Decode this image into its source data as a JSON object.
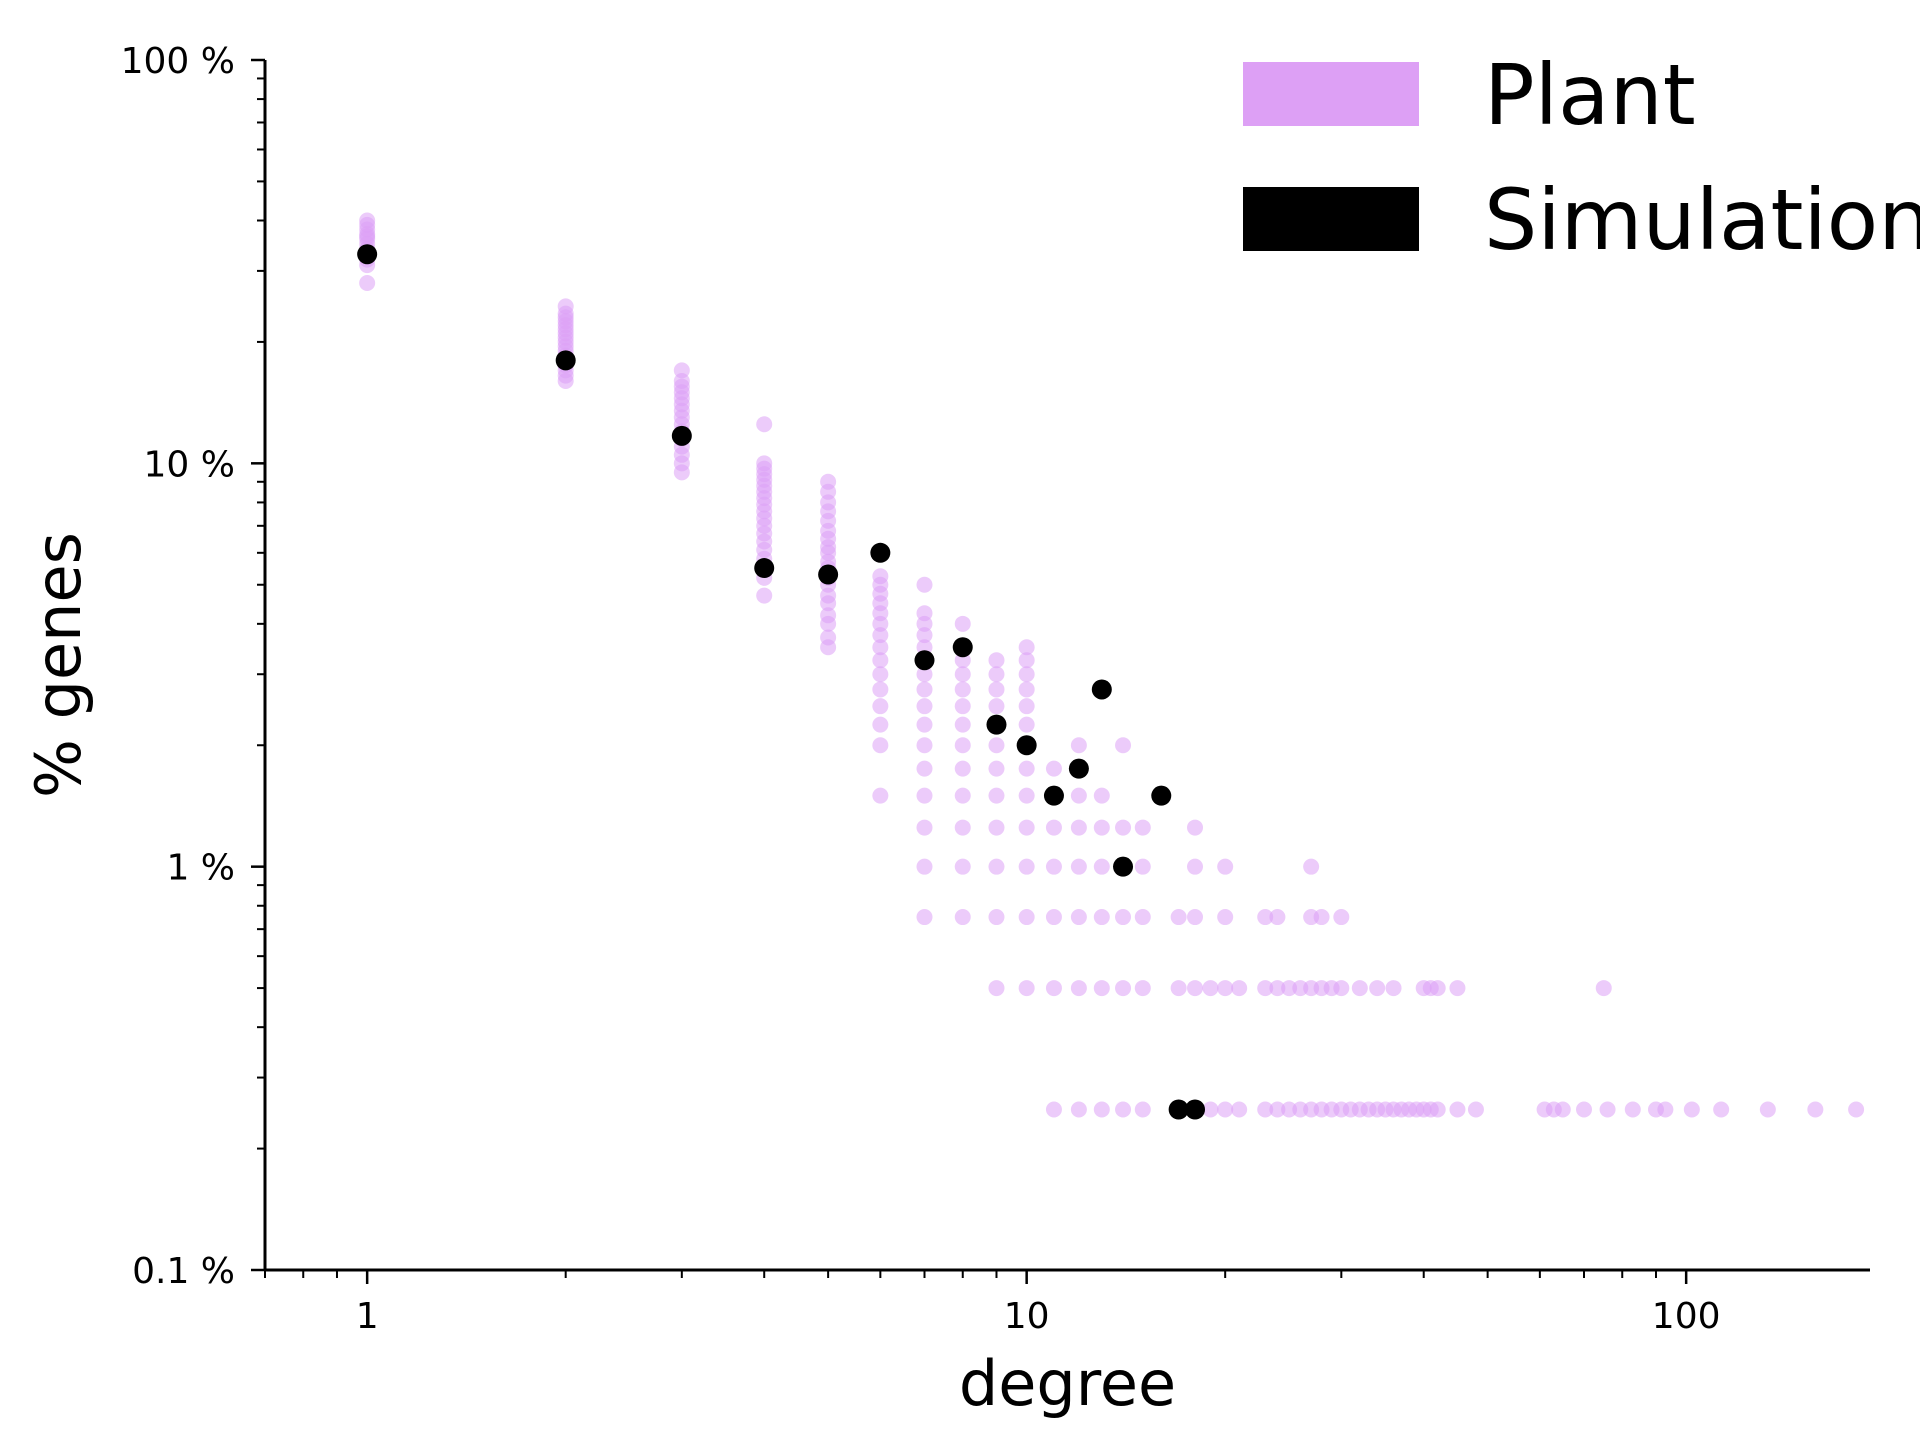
{
  "chart_data": {
    "type": "scatter",
    "title": "",
    "xlabel": "degree",
    "ylabel": "% genes",
    "xscale": "log",
    "yscale": "log",
    "xlim": [
      0.7,
      190
    ],
    "ylim": [
      0.1,
      100
    ],
    "xticks": [
      1,
      10,
      100
    ],
    "xtick_labels": [
      "1",
      "10",
      "100"
    ],
    "yticks": [
      0.1,
      1,
      10,
      100
    ],
    "ytick_labels": [
      "0.1 %",
      "1 %",
      "10 %",
      "100 %"
    ],
    "grid": false,
    "legend_position": "top-right",
    "series": [
      {
        "name": "Plant",
        "color": "#dda0f5",
        "points": [
          [
            1,
            40
          ],
          [
            1,
            39
          ],
          [
            1,
            38
          ],
          [
            1,
            37
          ],
          [
            1,
            36.5
          ],
          [
            1,
            36
          ],
          [
            1,
            35
          ],
          [
            1,
            34
          ],
          [
            1,
            33
          ],
          [
            1,
            32
          ],
          [
            1,
            31
          ],
          [
            1,
            28
          ],
          [
            2,
            24.5
          ],
          [
            2,
            23.5
          ],
          [
            2,
            23
          ],
          [
            2,
            22.5
          ],
          [
            2,
            22
          ],
          [
            2,
            21.5
          ],
          [
            2,
            21
          ],
          [
            2,
            20.5
          ],
          [
            2,
            20
          ],
          [
            2,
            19.5
          ],
          [
            2,
            19
          ],
          [
            2,
            18.5
          ],
          [
            2,
            18
          ],
          [
            2,
            17.5
          ],
          [
            2,
            17
          ],
          [
            2,
            16.5
          ],
          [
            2,
            16
          ],
          [
            3,
            17
          ],
          [
            3,
            16
          ],
          [
            3,
            15.5
          ],
          [
            3,
            15
          ],
          [
            3,
            14.5
          ],
          [
            3,
            14
          ],
          [
            3,
            13.5
          ],
          [
            3,
            13
          ],
          [
            3,
            12.5
          ],
          [
            3,
            12
          ],
          [
            3,
            11.5
          ],
          [
            3,
            11
          ],
          [
            3,
            10.5
          ],
          [
            3,
            10
          ],
          [
            3,
            9.5
          ],
          [
            4,
            12.5
          ],
          [
            4,
            10
          ],
          [
            4,
            9.7
          ],
          [
            4,
            9.4
          ],
          [
            4,
            9.1
          ],
          [
            4,
            8.8
          ],
          [
            4,
            8.5
          ],
          [
            4,
            8.2
          ],
          [
            4,
            7.9
          ],
          [
            4,
            7.6
          ],
          [
            4,
            7.3
          ],
          [
            4,
            7
          ],
          [
            4,
            6.7
          ],
          [
            4,
            6.4
          ],
          [
            4,
            6.1
          ],
          [
            4,
            5.8
          ],
          [
            4,
            5.5
          ],
          [
            4,
            5.2
          ],
          [
            4,
            4.7
          ],
          [
            5,
            9
          ],
          [
            5,
            8.5
          ],
          [
            5,
            8
          ],
          [
            5,
            7.6
          ],
          [
            5,
            7.2
          ],
          [
            5,
            6.8
          ],
          [
            5,
            6.5
          ],
          [
            5,
            6.2
          ],
          [
            5,
            6
          ],
          [
            5,
            5.7
          ],
          [
            5,
            5.5
          ],
          [
            5,
            5.2
          ],
          [
            5,
            5
          ],
          [
            5,
            4.7
          ],
          [
            5,
            4.5
          ],
          [
            5,
            4.2
          ],
          [
            5,
            4
          ],
          [
            5,
            3.7
          ],
          [
            5,
            3.5
          ],
          [
            6,
            5.25
          ],
          [
            6,
            5
          ],
          [
            6,
            4.75
          ],
          [
            6,
            4.5
          ],
          [
            6,
            4.25
          ],
          [
            6,
            4
          ],
          [
            6,
            3.75
          ],
          [
            6,
            3.5
          ],
          [
            6,
            3.25
          ],
          [
            6,
            3
          ],
          [
            6,
            2.75
          ],
          [
            6,
            2.5
          ],
          [
            6,
            2.25
          ],
          [
            6,
            2
          ],
          [
            6,
            1.5
          ],
          [
            7,
            5
          ],
          [
            7,
            4.25
          ],
          [
            7,
            4
          ],
          [
            7,
            3.75
          ],
          [
            7,
            3.5
          ],
          [
            7,
            3.25
          ],
          [
            7,
            3
          ],
          [
            7,
            2.75
          ],
          [
            7,
            2.5
          ],
          [
            7,
            2.25
          ],
          [
            7,
            2
          ],
          [
            7,
            1.75
          ],
          [
            7,
            1.5
          ],
          [
            7,
            1.25
          ],
          [
            7,
            1
          ],
          [
            7,
            0.75
          ],
          [
            8,
            4
          ],
          [
            8,
            3.25
          ],
          [
            8,
            3
          ],
          [
            8,
            2.75
          ],
          [
            8,
            2.5
          ],
          [
            8,
            2.25
          ],
          [
            8,
            2
          ],
          [
            8,
            1.75
          ],
          [
            8,
            1.5
          ],
          [
            8,
            1.25
          ],
          [
            8,
            1
          ],
          [
            8,
            0.75
          ],
          [
            9,
            3.25
          ],
          [
            9,
            3
          ],
          [
            9,
            2.75
          ],
          [
            9,
            2.5
          ],
          [
            9,
            2
          ],
          [
            9,
            1.75
          ],
          [
            9,
            1.5
          ],
          [
            9,
            1.25
          ],
          [
            9,
            1
          ],
          [
            9,
            0.75
          ],
          [
            9,
            0.5
          ],
          [
            10,
            3.5
          ],
          [
            10,
            3.25
          ],
          [
            10,
            3
          ],
          [
            10,
            2.75
          ],
          [
            10,
            2.5
          ],
          [
            10,
            2.25
          ],
          [
            10,
            1.75
          ],
          [
            10,
            1.5
          ],
          [
            10,
            1.25
          ],
          [
            10,
            1
          ],
          [
            10,
            0.75
          ],
          [
            10,
            0.5
          ],
          [
            11,
            1.75
          ],
          [
            11,
            1.25
          ],
          [
            11,
            1
          ],
          [
            11,
            0.75
          ],
          [
            11,
            0.5
          ],
          [
            11,
            0.25
          ],
          [
            12,
            2
          ],
          [
            12,
            1.5
          ],
          [
            12,
            1.25
          ],
          [
            12,
            1
          ],
          [
            12,
            0.75
          ],
          [
            12,
            0.5
          ],
          [
            12,
            0.25
          ],
          [
            13,
            1.5
          ],
          [
            13,
            1.25
          ],
          [
            13,
            1
          ],
          [
            13,
            0.75
          ],
          [
            13,
            0.5
          ],
          [
            13,
            0.25
          ],
          [
            14,
            2
          ],
          [
            14,
            1.25
          ],
          [
            14,
            0.75
          ],
          [
            14,
            0.5
          ],
          [
            14,
            0.25
          ],
          [
            15,
            1.25
          ],
          [
            15,
            1
          ],
          [
            15,
            0.75
          ],
          [
            15,
            0.5
          ],
          [
            15,
            0.25
          ],
          [
            17,
            0.75
          ],
          [
            17,
            0.5
          ],
          [
            17,
            0.25
          ],
          [
            18,
            1.25
          ],
          [
            18,
            1
          ],
          [
            18,
            0.75
          ],
          [
            18,
            0.5
          ],
          [
            18,
            0.25
          ],
          [
            19,
            0.5
          ],
          [
            19,
            0.25
          ],
          [
            20,
            1
          ],
          [
            20,
            0.75
          ],
          [
            20,
            0.5
          ],
          [
            20,
            0.25
          ],
          [
            21,
            0.5
          ],
          [
            21,
            0.25
          ],
          [
            23,
            0.75
          ],
          [
            23,
            0.5
          ],
          [
            23,
            0.25
          ],
          [
            24,
            0.75
          ],
          [
            24,
            0.5
          ],
          [
            24,
            0.25
          ],
          [
            25,
            0.5
          ],
          [
            25,
            0.25
          ],
          [
            26,
            0.5
          ],
          [
            26,
            0.25
          ],
          [
            27,
            1
          ],
          [
            27,
            0.75
          ],
          [
            27,
            0.5
          ],
          [
            27,
            0.25
          ],
          [
            28,
            0.75
          ],
          [
            28,
            0.5
          ],
          [
            28,
            0.25
          ],
          [
            29,
            0.5
          ],
          [
            29,
            0.25
          ],
          [
            30,
            0.75
          ],
          [
            30,
            0.5
          ],
          [
            30,
            0.25
          ],
          [
            31,
            0.25
          ],
          [
            32,
            0.5
          ],
          [
            32,
            0.25
          ],
          [
            33,
            0.25
          ],
          [
            34,
            0.5
          ],
          [
            34,
            0.25
          ],
          [
            35,
            0.25
          ],
          [
            36,
            0.5
          ],
          [
            36,
            0.25
          ],
          [
            37,
            0.25
          ],
          [
            38,
            0.25
          ],
          [
            39,
            0.25
          ],
          [
            40,
            0.5
          ],
          [
            40,
            0.25
          ],
          [
            41,
            0.5
          ],
          [
            41,
            0.25
          ],
          [
            42,
            0.5
          ],
          [
            42,
            0.25
          ],
          [
            45,
            0.5
          ],
          [
            45,
            0.25
          ],
          [
            48,
            0.25
          ],
          [
            61,
            0.25
          ],
          [
            63,
            0.25
          ],
          [
            65,
            0.25
          ],
          [
            70,
            0.25
          ],
          [
            75,
            0.5
          ],
          [
            76,
            0.25
          ],
          [
            83,
            0.25
          ],
          [
            90,
            0.25
          ],
          [
            93,
            0.25
          ],
          [
            102,
            0.25
          ],
          [
            113,
            0.25
          ],
          [
            133,
            0.25
          ],
          [
            157,
            0.25
          ],
          [
            181,
            0.25
          ]
        ]
      },
      {
        "name": "Simulation",
        "color": "#000000",
        "points": [
          [
            1,
            33
          ],
          [
            2,
            18
          ],
          [
            3,
            11.7
          ],
          [
            4,
            5.5
          ],
          [
            5,
            5.3
          ],
          [
            6,
            6
          ],
          [
            7,
            3.25
          ],
          [
            8,
            3.5
          ],
          [
            9,
            2.25
          ],
          [
            10,
            2
          ],
          [
            11,
            1.5
          ],
          [
            12,
            1.75
          ],
          [
            13,
            2.75
          ],
          [
            14,
            1
          ],
          [
            16,
            1.5
          ],
          [
            17,
            0.25
          ],
          [
            18,
            0.25
          ]
        ]
      }
    ]
  }
}
